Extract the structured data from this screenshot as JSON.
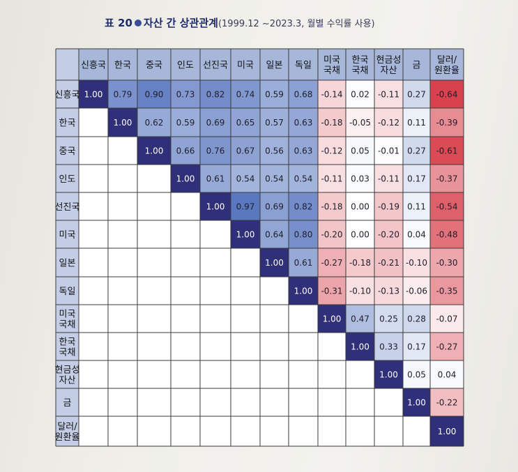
{
  "title": {
    "figure_label": "표 20",
    "main": "자산 간 상관관계",
    "sub": "(1999.12 ~2023.3, 월별 수익률 사용)"
  },
  "colors": {
    "diag": "#2f2f7a",
    "pos_strong": "#5a78c0",
    "neg_strong": "#d8424e",
    "neutral": "#ffffff",
    "header_bg": "#a6b7da",
    "grid": "#3a3a3a"
  },
  "chart_data": {
    "type": "heatmap",
    "title": "자산 간 상관관계",
    "x_labels": [
      [
        "신흥국"
      ],
      [
        "한국"
      ],
      [
        "중국"
      ],
      [
        "인도"
      ],
      [
        "선진국"
      ],
      [
        "미국"
      ],
      [
        "일본"
      ],
      [
        "독일"
      ],
      [
        "미국",
        "국채"
      ],
      [
        "한국",
        "국채"
      ],
      [
        "현금성",
        "자산"
      ],
      [
        "금"
      ],
      [
        "달러/",
        "원환율"
      ]
    ],
    "y_labels": [
      [
        "신흥국"
      ],
      [
        "한국"
      ],
      [
        "중국"
      ],
      [
        "인도"
      ],
      [
        "선진국"
      ],
      [
        "미국"
      ],
      [
        "일본"
      ],
      [
        "독일"
      ],
      [
        "미국",
        "국채"
      ],
      [
        "한국",
        "국채"
      ],
      [
        "현금성",
        "자산"
      ],
      [
        "금"
      ],
      [
        "달러/",
        "원환율"
      ]
    ],
    "values": [
      [
        1.0,
        0.79,
        0.9,
        0.73,
        0.82,
        0.74,
        0.59,
        0.68,
        -0.14,
        0.02,
        -0.11,
        0.27,
        -0.64
      ],
      [
        null,
        1.0,
        0.62,
        0.59,
        0.69,
        0.65,
        0.57,
        0.63,
        -0.18,
        -0.05,
        -0.12,
        0.11,
        -0.39
      ],
      [
        null,
        null,
        1.0,
        0.66,
        0.76,
        0.67,
        0.56,
        0.63,
        -0.12,
        0.05,
        -0.01,
        0.27,
        -0.61
      ],
      [
        null,
        null,
        null,
        1.0,
        0.61,
        0.54,
        0.54,
        0.54,
        -0.11,
        0.03,
        -0.11,
        0.17,
        -0.37
      ],
      [
        null,
        null,
        null,
        null,
        1.0,
        0.97,
        0.69,
        0.82,
        -0.18,
        0.0,
        -0.19,
        0.11,
        -0.54
      ],
      [
        null,
        null,
        null,
        null,
        null,
        1.0,
        0.64,
        0.8,
        -0.2,
        0.0,
        -0.2,
        0.04,
        -0.48
      ],
      [
        null,
        null,
        null,
        null,
        null,
        null,
        1.0,
        0.61,
        -0.27,
        -0.18,
        -0.21,
        -0.1,
        -0.3
      ],
      [
        null,
        null,
        null,
        null,
        null,
        null,
        null,
        1.0,
        -0.31,
        -0.1,
        -0.13,
        -0.06,
        -0.35
      ],
      [
        null,
        null,
        null,
        null,
        null,
        null,
        null,
        null,
        1.0,
        0.47,
        0.25,
        0.28,
        -0.07
      ],
      [
        null,
        null,
        null,
        null,
        null,
        null,
        null,
        null,
        null,
        1.0,
        0.33,
        0.17,
        -0.27
      ],
      [
        null,
        null,
        null,
        null,
        null,
        null,
        null,
        null,
        null,
        null,
        1.0,
        0.05,
        0.04
      ],
      [
        null,
        null,
        null,
        null,
        null,
        null,
        null,
        null,
        null,
        null,
        null,
        1.0,
        -0.22
      ],
      [
        null,
        null,
        null,
        null,
        null,
        null,
        null,
        null,
        null,
        null,
        null,
        null,
        1.0
      ]
    ],
    "value_range": [
      -1,
      1
    ],
    "grid": true,
    "legend": "none"
  }
}
